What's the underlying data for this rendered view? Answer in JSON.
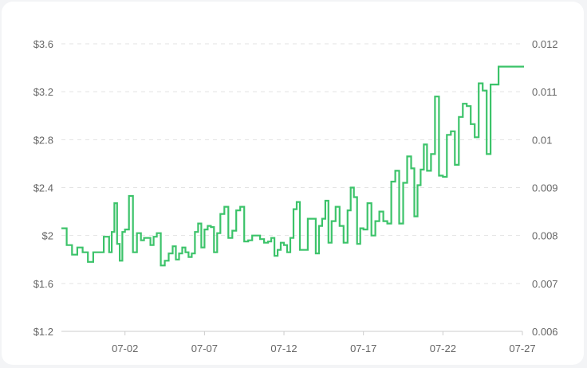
{
  "chart_data": {
    "type": "line",
    "title": "",
    "xlabel": "",
    "ylabel": "",
    "line_style": "step",
    "grid": true,
    "legend": "none",
    "colors": {
      "line": "#3cc36a",
      "grid": "#e3e3e3",
      "axis": "#cccccc",
      "tick_text": "#666666",
      "background": "#ffffff"
    },
    "x_range": [
      "06-28",
      "07-27"
    ],
    "x_ticks": [
      "07-02",
      "07-07",
      "07-12",
      "07-17",
      "07-22",
      "07-27"
    ],
    "y_left": {
      "ylim": [
        1.2,
        3.6
      ],
      "ticks": [
        "$1.2",
        "$1.6",
        "$2",
        "$2.4",
        "$2.8",
        "$3.2",
        "$3.6"
      ]
    },
    "y_right": {
      "ylim": [
        0.006,
        0.012
      ],
      "ticks": [
        "0.006",
        "0.007",
        "0.008",
        "0.009",
        "0.01",
        "0.011",
        "0.012"
      ]
    },
    "series": [
      {
        "points": [
          [
            "06-28",
            2.06
          ],
          [
            "06-28",
            1.92
          ],
          [
            "06-28",
            1.84
          ],
          [
            "06-29",
            1.9
          ],
          [
            "06-29",
            1.86
          ],
          [
            "06-29",
            1.78
          ],
          [
            "06-30",
            1.86
          ],
          [
            "06-30",
            1.86
          ],
          [
            "06-30",
            1.99
          ],
          [
            "07-01",
            1.86
          ],
          [
            "07-01",
            2.03
          ],
          [
            "07-01",
            2.27
          ],
          [
            "07-01",
            1.93
          ],
          [
            "07-01",
            1.79
          ],
          [
            "07-01",
            2.03
          ],
          [
            "07-02",
            2.05
          ],
          [
            "07-02",
            2.33
          ],
          [
            "07-02",
            1.86
          ],
          [
            "07-02",
            2.02
          ],
          [
            "07-03",
            1.96
          ],
          [
            "07-03",
            1.98
          ],
          [
            "07-03",
            1.98
          ],
          [
            "07-03",
            1.92
          ],
          [
            "07-03",
            1.99
          ],
          [
            "07-04",
            2.02
          ],
          [
            "07-04",
            1.75
          ],
          [
            "07-04",
            1.79
          ],
          [
            "07-04",
            1.85
          ],
          [
            "07-05",
            1.91
          ],
          [
            "07-05",
            1.8
          ],
          [
            "07-05",
            1.85
          ],
          [
            "07-05",
            1.9
          ],
          [
            "07-05",
            1.86
          ],
          [
            "07-06",
            1.82
          ],
          [
            "07-06",
            1.85
          ],
          [
            "07-06",
            2.03
          ],
          [
            "07-06",
            2.1
          ],
          [
            "07-06",
            1.9
          ],
          [
            "07-07",
            2.05
          ],
          [
            "07-07",
            2.08
          ],
          [
            "07-07",
            2.07
          ],
          [
            "07-07",
            1.86
          ],
          [
            "07-07",
            2.02
          ],
          [
            "07-08",
            2.18
          ],
          [
            "07-08",
            2.24
          ],
          [
            "07-08",
            1.98
          ],
          [
            "07-08",
            2.04
          ],
          [
            "07-09",
            2.21
          ],
          [
            "07-09",
            2.24
          ],
          [
            "07-09",
            1.95
          ],
          [
            "07-09",
            1.96
          ],
          [
            "07-10",
            2.0
          ],
          [
            "07-10",
            2.0
          ],
          [
            "07-10",
            1.97
          ],
          [
            "07-10",
            1.94
          ],
          [
            "07-11",
            1.95
          ],
          [
            "07-11",
            1.98
          ],
          [
            "07-11",
            1.83
          ],
          [
            "07-11",
            1.88
          ],
          [
            "07-11",
            1.94
          ],
          [
            "07-12",
            1.92
          ],
          [
            "07-12",
            1.86
          ],
          [
            "07-12",
            1.98
          ],
          [
            "07-12",
            2.22
          ],
          [
            "07-12",
            2.28
          ],
          [
            "07-13",
            1.88
          ],
          [
            "07-13",
            1.88
          ],
          [
            "07-13",
            2.14
          ],
          [
            "07-13",
            2.14
          ],
          [
            "07-14",
            1.85
          ],
          [
            "07-14",
            2.08
          ],
          [
            "07-14",
            2.14
          ],
          [
            "07-14",
            2.29
          ],
          [
            "07-14",
            1.94
          ],
          [
            "07-15",
            2.12
          ],
          [
            "07-15",
            2.24
          ],
          [
            "07-15",
            2.08
          ],
          [
            "07-15",
            1.94
          ],
          [
            "07-16",
            2.21
          ],
          [
            "07-16",
            2.4
          ],
          [
            "07-16",
            2.32
          ],
          [
            "07-16",
            1.93
          ],
          [
            "07-16",
            2.06
          ],
          [
            "07-17",
            2.05
          ],
          [
            "07-17",
            2.27
          ],
          [
            "07-17",
            2.0
          ],
          [
            "07-17",
            2.12
          ],
          [
            "07-18",
            2.2
          ],
          [
            "07-18",
            2.12
          ],
          [
            "07-18",
            2.1
          ],
          [
            "07-18",
            2.45
          ],
          [
            "07-19",
            2.54
          ],
          [
            "07-19",
            2.1
          ],
          [
            "07-19",
            2.44
          ],
          [
            "07-19",
            2.66
          ],
          [
            "07-20",
            2.56
          ],
          [
            "07-20",
            2.16
          ],
          [
            "07-20",
            2.42
          ],
          [
            "07-20",
            2.55
          ],
          [
            "07-20",
            2.76
          ],
          [
            "07-21",
            2.54
          ],
          [
            "07-21",
            2.68
          ],
          [
            "07-21",
            3.16
          ],
          [
            "07-21",
            2.5
          ],
          [
            "07-22",
            2.49
          ],
          [
            "07-22",
            2.84
          ],
          [
            "07-22",
            2.87
          ],
          [
            "07-22",
            2.59
          ],
          [
            "07-23",
            2.99
          ],
          [
            "07-23",
            3.1
          ],
          [
            "07-23",
            3.08
          ],
          [
            "07-23",
            2.93
          ],
          [
            "07-24",
            2.82
          ],
          [
            "07-24",
            3.27
          ],
          [
            "07-24",
            3.21
          ],
          [
            "07-24",
            2.68
          ],
          [
            "07-25",
            3.26
          ],
          [
            "07-25",
            3.41
          ]
        ]
      }
    ]
  }
}
